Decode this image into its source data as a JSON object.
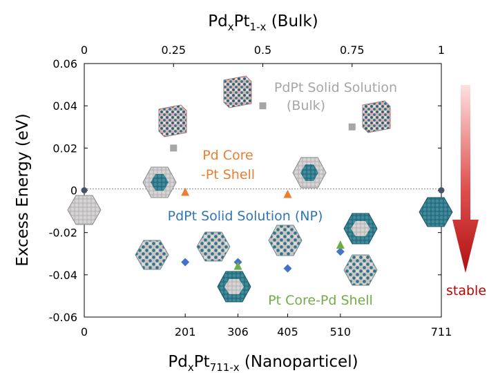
{
  "chart_data": {
    "type": "scatter",
    "title": "",
    "top_axis": {
      "label_main": "Pd",
      "label_sub1": "x",
      "label_mid": "Pt",
      "label_sub2": "1-x",
      "label_tail": " (Bulk)",
      "range": [
        0,
        1
      ],
      "ticks": [
        {
          "label": "0",
          "value": 0
        },
        {
          "label": "0.25",
          "value": 0.25
        },
        {
          "label": "0.5",
          "value": 0.5
        },
        {
          "label": "0.75",
          "value": 0.75
        },
        {
          "label": "1",
          "value": 1
        }
      ]
    },
    "bottom_axis": {
      "label_main": "Pd",
      "label_sub1": "x",
      "label_mid": "Pt",
      "label_sub2": "711-x",
      "label_tail": " (Nanoparticel)",
      "range": [
        0,
        711
      ],
      "ticks": [
        {
          "label": "0",
          "value": 0
        },
        {
          "label": "201",
          "value": 201
        },
        {
          "label": "306",
          "value": 306
        },
        {
          "label": "405",
          "value": 405
        },
        {
          "label": "510",
          "value": 510
        },
        {
          "label": "711",
          "value": 711
        }
      ]
    },
    "ylabel": "Excess Energy (eV)",
    "ylim": [
      -0.06,
      0.06
    ],
    "yticks": [
      "0.06",
      "0.04",
      "0.02",
      "0",
      "-0.02",
      "-0.04",
      "-0.06"
    ],
    "ytick_values": [
      0.06,
      0.04,
      0.02,
      0,
      -0.02,
      -0.04,
      -0.06
    ],
    "series": [
      {
        "key": "bulk",
        "name": "PdPt Solid Solution (Bulk)",
        "axis": "top",
        "marker": "square",
        "color": "#a6a6a6",
        "points": [
          {
            "x": 0.25,
            "y": 0.02
          },
          {
            "x": 0.5,
            "y": 0.04
          },
          {
            "x": 0.75,
            "y": 0.03
          }
        ]
      },
      {
        "key": "pd_core",
        "name": "Pd Core -Pt Shell",
        "axis": "bottom",
        "marker": "triangle",
        "color": "#ed7d31",
        "points": [
          {
            "x": 201,
            "y": -0.001
          },
          {
            "x": 405,
            "y": -0.002
          }
        ]
      },
      {
        "key": "np",
        "name": "PdPt Solid Solution (NP)",
        "axis": "bottom",
        "marker": "diamond",
        "color": "#4472c4",
        "points": [
          {
            "x": 201,
            "y": -0.034
          },
          {
            "x": 306,
            "y": -0.034
          },
          {
            "x": 405,
            "y": -0.037
          },
          {
            "x": 510,
            "y": -0.029
          }
        ]
      },
      {
        "key": "pt_core",
        "name": "Pt Core-Pd Shell",
        "axis": "bottom",
        "marker": "triangle",
        "color": "#70ad47",
        "points": [
          {
            "x": 306,
            "y": -0.036
          },
          {
            "x": 510,
            "y": -0.026
          }
        ]
      },
      {
        "key": "pure",
        "name": "",
        "axis": "bottom",
        "marker": "circle",
        "color": "#44546a",
        "points": [
          {
            "x": 0,
            "y": 0
          },
          {
            "x": 711,
            "y": 0
          }
        ]
      }
    ],
    "labels": {
      "bulk_line1": "PdPt Solid Solution",
      "bulk_line2": "(Bulk)",
      "pd_core_line1": "Pd Core",
      "pd_core_line2": "-Pt Shell",
      "np": "PdPt Solid Solution (NP)",
      "pt_core": "Pt Core-Pd Shell",
      "stable": "stable"
    },
    "grid": false,
    "zero_line": "dashed"
  }
}
